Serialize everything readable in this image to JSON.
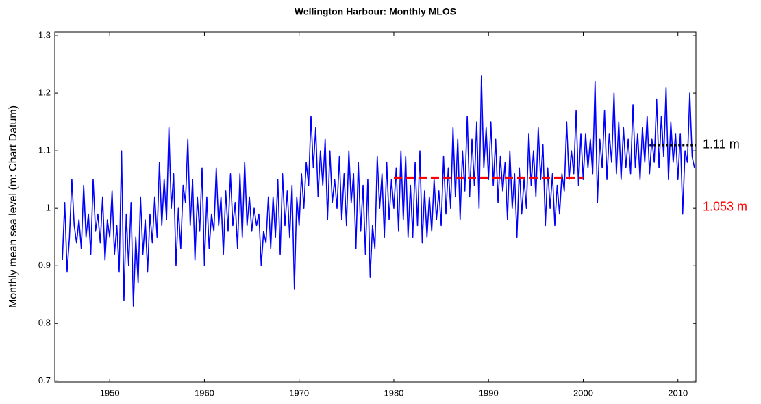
{
  "chart_data": {
    "type": "line",
    "title": "Wellington Harbour: Monthly MLOS",
    "y_label": "Monthly mean sea level (m: Chart Datum)",
    "x": [
      1945,
      1945.25,
      1945.5,
      1945.75,
      1946,
      1946.25,
      1946.5,
      1946.75,
      1947,
      1947.25,
      1947.5,
      1947.75,
      1948,
      1948.25,
      1948.5,
      1948.75,
      1949,
      1949.25,
      1949.5,
      1949.75,
      1950,
      1950.25,
      1950.5,
      1950.75,
      1951,
      1951.25,
      1951.5,
      1951.75,
      1952,
      1952.25,
      1952.5,
      1952.75,
      1953,
      1953.25,
      1953.5,
      1953.75,
      1954,
      1954.25,
      1954.5,
      1954.75,
      1955,
      1955.25,
      1955.5,
      1955.75,
      1956,
      1956.25,
      1956.5,
      1956.75,
      1957,
      1957.25,
      1957.5,
      1957.75,
      1958,
      1958.25,
      1958.5,
      1958.75,
      1959,
      1959.25,
      1959.5,
      1959.75,
      1960,
      1960.25,
      1960.5,
      1960.75,
      1961,
      1961.25,
      1961.5,
      1961.75,
      1962,
      1962.25,
      1962.5,
      1962.75,
      1963,
      1963.25,
      1963.5,
      1963.75,
      1964,
      1964.25,
      1964.5,
      1964.75,
      1965,
      1965.25,
      1965.5,
      1965.75,
      1966,
      1966.25,
      1966.5,
      1966.75,
      1967,
      1967.25,
      1967.5,
      1967.75,
      1968,
      1968.25,
      1968.5,
      1968.75,
      1969,
      1969.25,
      1969.5,
      1969.75,
      1970,
      1970.25,
      1970.5,
      1970.75,
      1971,
      1971.25,
      1971.5,
      1971.75,
      1972,
      1972.25,
      1972.5,
      1972.75,
      1973,
      1973.25,
      1973.5,
      1973.75,
      1974,
      1974.25,
      1974.5,
      1974.75,
      1975,
      1975.25,
      1975.5,
      1975.75,
      1976,
      1976.25,
      1976.5,
      1976.75,
      1977,
      1977.25,
      1977.5,
      1977.75,
      1978,
      1978.25,
      1978.5,
      1978.75,
      1979,
      1979.25,
      1979.5,
      1979.75,
      1980,
      1980.25,
      1980.5,
      1980.75,
      1981,
      1981.25,
      1981.5,
      1981.75,
      1982,
      1982.25,
      1982.5,
      1982.75,
      1983,
      1983.25,
      1983.5,
      1983.75,
      1984,
      1984.25,
      1984.5,
      1984.75,
      1985,
      1985.25,
      1985.5,
      1985.75,
      1986,
      1986.25,
      1986.5,
      1986.75,
      1987,
      1987.25,
      1987.5,
      1987.75,
      1988,
      1988.25,
      1988.5,
      1988.75,
      1989,
      1989.25,
      1989.5,
      1989.75,
      1990,
      1990.25,
      1990.5,
      1990.75,
      1991,
      1991.25,
      1991.5,
      1991.75,
      1992,
      1992.25,
      1992.5,
      1992.75,
      1993,
      1993.25,
      1993.5,
      1993.75,
      1994,
      1994.25,
      1994.5,
      1994.75,
      1995,
      1995.25,
      1995.5,
      1995.75,
      1996,
      1996.25,
      1996.5,
      1996.75,
      1997,
      1997.25,
      1997.5,
      1997.75,
      1998,
      1998.25,
      1998.5,
      1998.75,
      1999,
      1999.25,
      1999.5,
      1999.75,
      2000,
      2000.25,
      2000.5,
      2000.75,
      2001,
      2001.25,
      2001.5,
      2001.75,
      2002,
      2002.25,
      2002.5,
      2002.75,
      2003,
      2003.25,
      2003.5,
      2003.75,
      2004,
      2004.25,
      2004.5,
      2004.75,
      2005,
      2005.25,
      2005.5,
      2005.75,
      2006,
      2006.25,
      2006.5,
      2006.75,
      2007,
      2007.25,
      2007.5,
      2007.75,
      2008,
      2008.25,
      2008.5,
      2008.75,
      2009,
      2009.25,
      2009.5,
      2009.75,
      2010,
      2010.25,
      2010.5,
      2010.75,
      2011,
      2011.25,
      2011.5,
      2011.75
    ],
    "series": [
      {
        "color": "#0000ff",
        "values": [
          0.91,
          1.01,
          0.89,
          0.95,
          1.05,
          0.97,
          0.94,
          0.98,
          0.93,
          1.04,
          0.95,
          0.99,
          0.92,
          1.05,
          0.96,
          0.99,
          0.94,
          1.02,
          0.91,
          0.98,
          0.95,
          1.03,
          0.92,
          0.97,
          0.89,
          1.1,
          0.84,
          0.99,
          0.9,
          1.01,
          0.83,
          0.95,
          0.87,
          1.02,
          0.92,
          0.98,
          0.89,
          0.99,
          0.94,
          1.02,
          0.95,
          1.08,
          0.97,
          1.05,
          0.98,
          1.14,
          1.0,
          1.06,
          0.9,
          1.0,
          0.93,
          1.04,
          1.01,
          1.12,
          0.97,
          1.05,
          0.91,
          1.02,
          0.96,
          1.07,
          0.9,
          1.02,
          0.93,
          0.99,
          0.96,
          1.07,
          0.97,
          1.02,
          0.92,
          1.03,
          0.96,
          1.06,
          0.97,
          1.01,
          0.93,
          1.06,
          0.95,
          1.08,
          0.97,
          1.02,
          0.96,
          1.0,
          0.97,
          0.99,
          0.9,
          0.96,
          0.94,
          1.02,
          0.93,
          1.02,
          0.95,
          1.05,
          0.92,
          1.06,
          0.97,
          1.03,
          0.95,
          1.04,
          0.86,
          1.02,
          0.97,
          1.06,
          1.0,
          1.08,
          1.04,
          1.16,
          1.07,
          1.14,
          1.02,
          1.1,
          1.04,
          1.12,
          0.98,
          1.1,
          1.01,
          1.05,
          1.0,
          1.09,
          0.98,
          1.06,
          0.97,
          1.1,
          1.01,
          1.06,
          0.93,
          1.08,
          0.96,
          1.04,
          0.92,
          1.05,
          0.88,
          0.97,
          0.93,
          1.09,
          1.0,
          1.06,
          0.95,
          1.08,
          0.98,
          1.05,
          1.0,
          1.07,
          0.96,
          1.1,
          0.98,
          1.09,
          0.95,
          1.04,
          0.95,
          1.08,
          0.97,
          1.1,
          0.94,
          1.03,
          0.95,
          1.02,
          0.96,
          1.05,
          0.98,
          1.03,
          0.97,
          1.09,
          0.99,
          1.07,
          1.0,
          1.14,
          1.02,
          1.12,
          0.98,
          1.1,
          1.03,
          1.16,
          1.02,
          1.12,
          1.04,
          1.15,
          1.0,
          1.23,
          1.07,
          1.14,
          1.05,
          1.15,
          1.04,
          1.12,
          1.01,
          1.09,
          1.03,
          1.08,
          0.98,
          1.1,
          1.0,
          1.06,
          0.95,
          1.07,
          0.99,
          1.05,
          1.0,
          1.13,
          1.04,
          1.1,
          1.02,
          1.14,
          1.05,
          1.11,
          0.97,
          1.07,
          1.0,
          1.06,
          0.97,
          1.04,
          0.99,
          1.06,
          1.03,
          1.15,
          1.05,
          1.1,
          1.06,
          1.17,
          1.04,
          1.13,
          1.05,
          1.13,
          1.07,
          1.12,
          1.06,
          1.22,
          1.01,
          1.12,
          1.07,
          1.17,
          1.05,
          1.13,
          1.08,
          1.2,
          1.06,
          1.15,
          1.05,
          1.14,
          1.07,
          1.12,
          1.06,
          1.18,
          1.07,
          1.13,
          1.05,
          1.14,
          1.08,
          1.16,
          1.06,
          1.12,
          1.08,
          1.19,
          1.07,
          1.16,
          1.09,
          1.21,
          1.05,
          1.15,
          1.08,
          1.13,
          1.05,
          1.13,
          0.99,
          1.1,
          1.08,
          1.2,
          1.09,
          1.07
        ]
      }
    ],
    "annotations": [
      {
        "label": "1.11 m",
        "value": 1.11,
        "x": [
          2007,
          2012
        ],
        "color": "#000000",
        "dash": "dotted"
      },
      {
        "label": "1.053 m",
        "value": 1.053,
        "x": [
          1980,
          2000
        ],
        "color": "#ff0000",
        "dash": "dashed"
      }
    ],
    "xlim": [
      1944.2,
      2011.9
    ],
    "xticks": [
      1950,
      1960,
      1970,
      1980,
      1990,
      2000,
      2010
    ],
    "ylim": [
      0.698,
      1.306
    ],
    "yticks": [
      0.7,
      0.8,
      0.9,
      1,
      1.1,
      1.2,
      1.3
    ],
    "grid": false
  }
}
